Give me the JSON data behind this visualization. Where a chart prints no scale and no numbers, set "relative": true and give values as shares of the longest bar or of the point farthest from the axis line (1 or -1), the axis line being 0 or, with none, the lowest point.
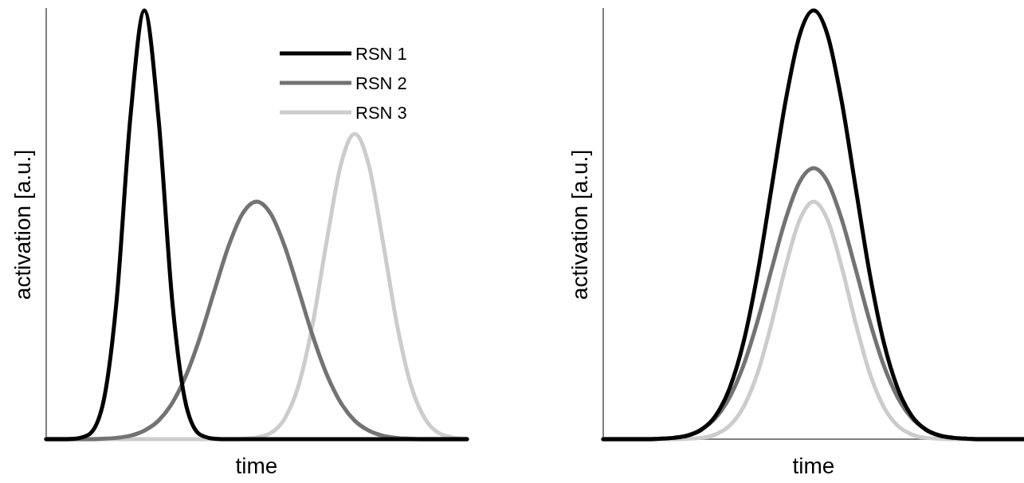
{
  "chart_data": [
    {
      "type": "line",
      "relative": true,
      "xlabel": "time",
      "ylabel": "activation [a.u.]",
      "legend": "top right",
      "categories": [
        null,
        null,
        null,
        null,
        null,
        null,
        null,
        null,
        null,
        null,
        null,
        null,
        null,
        null,
        null,
        null,
        null,
        null,
        null,
        null,
        null,
        null,
        null,
        null,
        null,
        null,
        null,
        null,
        null,
        null,
        null
      ],
      "series": [
        {
          "name": "RSN 1",
          "color": "#000000",
          "values": [
            0,
            0,
            0.001,
            0.01,
            0.076,
            0.317,
            0.75,
            1,
            0.75,
            0.317,
            0.076,
            0.01,
            0.001,
            0,
            0,
            0,
            0,
            0,
            0,
            0,
            0,
            0,
            0,
            0,
            0,
            0,
            0,
            0,
            0,
            0,
            0
          ]
        },
        {
          "name": "RSN 2",
          "color": "#737373",
          "values": [
            0,
            0,
            0,
            0,
            0.001,
            0.003,
            0.008,
            0.02,
            0.043,
            0.085,
            0.151,
            0.241,
            0.347,
            0.45,
            0.526,
            0.554,
            0.526,
            0.45,
            0.347,
            0.241,
            0.151,
            0.085,
            0.043,
            0.02,
            0.008,
            0.003,
            0.001,
            0,
            0,
            0,
            0
          ]
        },
        {
          "name": "RSN 3",
          "color": "#cccccc",
          "values": [
            0,
            0,
            0,
            0,
            0,
            0,
            0,
            0,
            0,
            0,
            0,
            0,
            0,
            0,
            0.001,
            0.004,
            0.014,
            0.048,
            0.126,
            0.269,
            0.462,
            0.639,
            0.712,
            0.639,
            0.462,
            0.269,
            0.126,
            0.048,
            0.014,
            0.004,
            0.001
          ]
        }
      ]
    },
    {
      "type": "line",
      "relative": true,
      "xlabel": "time",
      "ylabel": "activation [a.u.]",
      "categories": [
        null,
        null,
        null,
        null,
        null,
        null,
        null,
        null,
        null,
        null,
        null,
        null,
        null,
        null,
        null,
        null,
        null,
        null,
        null,
        null,
        null,
        null,
        null,
        null,
        null,
        null,
        null,
        null,
        null,
        null,
        null
      ],
      "series": [
        {
          "color": "#000000",
          "values": [
            0,
            0,
            0,
            0,
            0.001,
            0.003,
            0.008,
            0.022,
            0.054,
            0.118,
            0.226,
            0.386,
            0.586,
            0.788,
            0.942,
            1,
            0.942,
            0.788,
            0.586,
            0.386,
            0.226,
            0.118,
            0.054,
            0.022,
            0.008,
            0.003,
            0.001,
            0,
            0,
            0,
            0
          ]
        },
        {
          "color": "#737373",
          "values": [
            0,
            0,
            0,
            0,
            0.001,
            0.003,
            0.009,
            0.023,
            0.049,
            0.097,
            0.172,
            0.275,
            0.396,
            0.513,
            0.6,
            0.632,
            0.6,
            0.513,
            0.396,
            0.275,
            0.172,
            0.097,
            0.049,
            0.023,
            0.009,
            0.003,
            0.001,
            0,
            0,
            0,
            0
          ]
        },
        {
          "color": "#cccccc",
          "values": [
            0,
            0,
            0,
            0,
            0,
            0,
            0.001,
            0.003,
            0.011,
            0.031,
            0.075,
            0.154,
            0.27,
            0.402,
            0.511,
            0.554,
            0.511,
            0.402,
            0.27,
            0.154,
            0.075,
            0.031,
            0.011,
            0.003,
            0.001,
            0,
            0,
            0,
            0,
            0,
            0
          ]
        }
      ]
    }
  ]
}
